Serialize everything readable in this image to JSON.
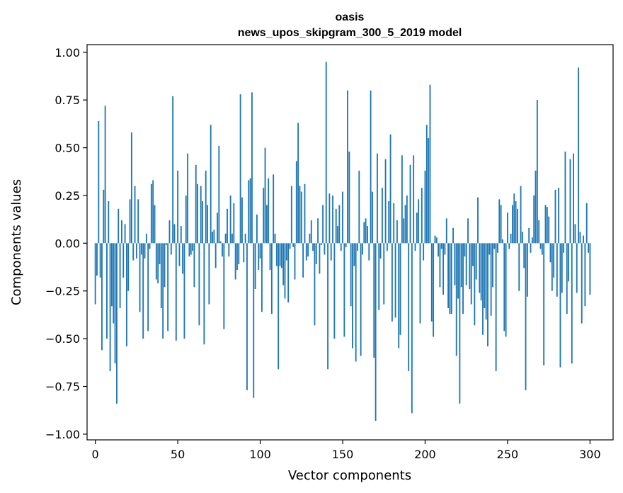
{
  "chart_data": {
    "type": "bar",
    "title": "oasis",
    "subtitle": "news_upos_skipgram_300_5_2019 model",
    "xlabel": "Vector components",
    "ylabel": "Components values",
    "xlim": [
      -5,
      314
    ],
    "ylim": [
      -1.03,
      1.04
    ],
    "xticks": [
      0,
      50,
      100,
      150,
      200,
      250,
      300
    ],
    "yticks": [
      -1.0,
      -0.75,
      -0.5,
      -0.25,
      0.0,
      0.25,
      0.5,
      0.75,
      1.0
    ],
    "ytick_labels": [
      "−1.00",
      "−0.75",
      "−0.50",
      "−0.25",
      "0.00",
      "0.25",
      "0.50",
      "0.75",
      "1.00"
    ],
    "xtick_labels": [
      "0",
      "50",
      "100",
      "150",
      "200",
      "250",
      "300"
    ],
    "bar_color": "#1f77b4",
    "grid": false,
    "values": [
      -0.32,
      -0.17,
      0.64,
      -0.18,
      -0.56,
      0.28,
      0.72,
      -0.5,
      0.22,
      -0.67,
      -0.33,
      -0.42,
      -0.63,
      -0.84,
      0.18,
      -0.34,
      0.12,
      -0.18,
      0.1,
      -0.54,
      -0.25,
      0.23,
      0.58,
      -0.09,
      0.3,
      -0.08,
      0.23,
      -0.36,
      -0.06,
      -0.5,
      -0.08,
      0.05,
      -0.46,
      -0.03,
      0.31,
      0.33,
      0.2,
      -0.19,
      -0.21,
      -0.11,
      -0.34,
      -0.5,
      -0.23,
      -0.01,
      -0.46,
      0.12,
      -0.06,
      0.77,
      0.1,
      -0.51,
      0.38,
      -0.12,
      0.09,
      -0.16,
      -0.5,
      0.25,
      0.47,
      -0.07,
      -0.06,
      -0.04,
      -0.23,
      0.41,
      0.31,
      -0.43,
      0.3,
      0.22,
      -0.53,
      0.38,
      0.2,
      -0.32,
      0.62,
      0.06,
      0.07,
      -0.13,
      0.16,
      0.51,
      0.01,
      -0.07,
      -0.45,
      0.05,
      0.18,
      -0.07,
      0.25,
      0.05,
      0.21,
      -0.19,
      -0.14,
      -0.11,
      0.78,
      0.24,
      -0.1,
      0.05,
      -0.77,
      0.33,
      0.34,
      0.79,
      -0.81,
      -0.24,
      0.15,
      -0.14,
      -0.08,
      -0.36,
      0.29,
      0.5,
      0.2,
      0.34,
      -0.14,
      -0.37,
      0.36,
      0.05,
      -0.12,
      -0.66,
      -0.12,
      -0.13,
      -0.22,
      -0.29,
      -0.09,
      -0.31,
      -0.03,
      0.3,
      -0.02,
      -0.19,
      0.43,
      0.63,
      0.3,
      0.27,
      -0.18,
      0.31,
      -0.09,
      -0.07,
      0.05,
      0.12,
      -0.04,
      -0.43,
      -0.11,
      0.13,
      -0.16,
      -0.01,
      0.2,
      -0.06,
      0.95,
      -0.66,
      0.26,
      -0.09,
      0.25,
      -0.5,
      0.18,
      0.09,
      0.2,
      -0.04,
      0.27,
      -0.49,
      -0.02,
      0.8,
      0.48,
      -0.33,
      -0.55,
      -0.12,
      -0.62,
      -0.04,
      0.38,
      -0.59,
      -0.06,
      0.11,
      0.13,
      0.09,
      -0.09,
      0.8,
      0.27,
      -0.6,
      -0.93,
      0.47,
      -0.35,
      -0.08,
      0.29,
      -0.32,
      0.44,
      -0.04,
      0.22,
      0.57,
      -0.41,
      0.21,
      -0.39,
      0.12,
      -0.55,
      -0.48,
      0.46,
      0.13,
      0.2,
      0.25,
      -0.67,
      0.41,
      -0.89,
      0.46,
      -0.04,
      0.16,
      0.23,
      -0.42,
      0.29,
      -0.09,
      0.38,
      0.62,
      0.55,
      0.83,
      -0.41,
      -0.49,
      0.04,
      0.03,
      -0.07,
      -0.23,
      -0.03,
      -0.27,
      -0.06,
      0.13,
      -0.34,
      -0.37,
      -0.37,
      0.08,
      -0.22,
      -0.59,
      -0.29,
      -0.84,
      -0.23,
      -0.37,
      -0.07,
      -0.22,
      0.13,
      -0.24,
      -0.32,
      -0.12,
      -0.43,
      -0.19,
      0.24,
      -0.26,
      -0.3,
      -0.48,
      -0.34,
      -0.4,
      -0.54,
      -0.06,
      -0.38,
      -0.23,
      -0.03,
      -0.67,
      -0.05,
      0.23,
      0.2,
      0.02,
      -0.46,
      -0.49,
      0.16,
      -0.03,
      0.05,
      0.2,
      0.26,
      0.22,
      0.18,
      -0.25,
      0.3,
      0.06,
      -0.13,
      -0.77,
      -0.28,
      0.08,
      -0.05,
      0.03,
      0.25,
      0.38,
      0.75,
      0.12,
      -0.03,
      -0.06,
      -0.64,
      0.2,
      0.19,
      0.14,
      -0.1,
      -0.25,
      -0.18,
      0.28,
      -0.28,
      0.29,
      -0.65,
      -0.26,
      -0.05,
      0.48,
      -0.37,
      -0.2,
      0.44,
      -0.63,
      0.47,
      0.1,
      -0.26,
      0.92,
      0.06,
      -0.42,
      0.04,
      -0.33,
      0.21,
      -0.05,
      -0.27
    ]
  }
}
